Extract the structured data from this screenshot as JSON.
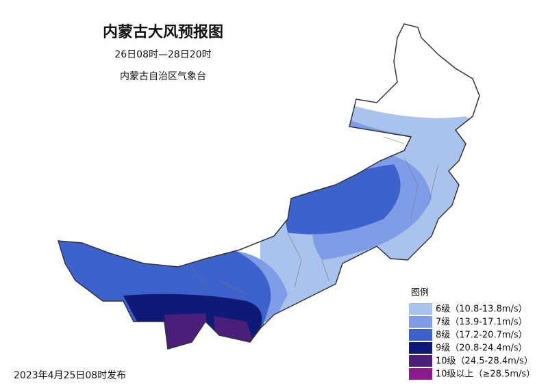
{
  "header": {
    "title": "内蒙古大风预报图",
    "period": "26日08时—28日20时",
    "issuer": "内蒙古自治区气象台"
  },
  "legend": {
    "title": "图例",
    "items": [
      {
        "label": "6级（10.8-13.8m/s）",
        "color": "#a9c3ec"
      },
      {
        "label": "7级（13.9-17.1m/s）",
        "color": "#7f9de6"
      },
      {
        "label": "8级（17.2-20.7m/s）",
        "color": "#3d62cb"
      },
      {
        "label": "9级（20.8-24.4m/s）",
        "color": "#0f1a76"
      },
      {
        "label": "10级（24.5-28.4m/s）",
        "color": "#4a1f7c"
      },
      {
        "label": "10级以上（≥28.5m/s）",
        "color": "#8a1c8e"
      }
    ]
  },
  "footer": {
    "issued": "2023年4月25日08时发布"
  }
}
